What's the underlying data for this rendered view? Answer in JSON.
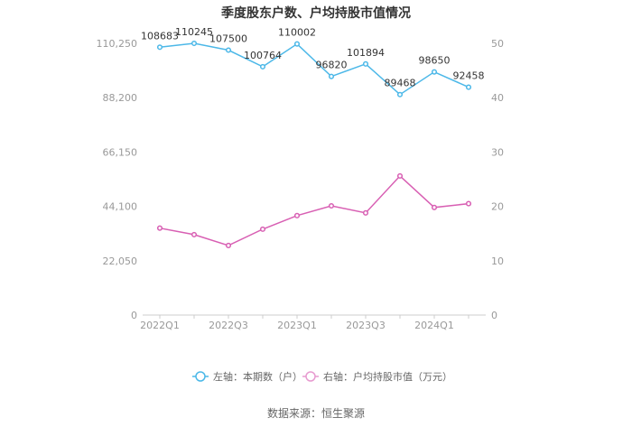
{
  "chart_data": {
    "type": "line",
    "title": "季度股东户数、户均持股市值情况",
    "categories": [
      "2022Q1",
      "2022Q2",
      "2022Q3",
      "2022Q4",
      "2023Q1",
      "2023Q2",
      "2023Q3",
      "2023Q4",
      "2024Q1",
      "2024Q2"
    ],
    "x_tick_labels": [
      "2022Q1",
      "2022Q3",
      "2023Q1",
      "2023Q3",
      "2024Q1"
    ],
    "left_axis": {
      "ticks": [
        "0",
        "22,050",
        "44,100",
        "66,150",
        "88,200",
        "110,250"
      ],
      "ylim": [
        0,
        110250
      ]
    },
    "right_axis": {
      "ticks": [
        "0",
        "10",
        "20",
        "30",
        "40",
        "50"
      ],
      "ylim": [
        0,
        50
      ]
    },
    "series": [
      {
        "name": "左轴：本期数（户）",
        "axis": "left",
        "color": "#4cb8e8",
        "values": [
          108683,
          110245,
          107500,
          100764,
          110002,
          96820,
          101894,
          89468,
          98650,
          92458
        ],
        "data_labels": [
          "108683",
          "110245",
          "107500",
          "100764",
          "110002",
          "96820",
          "101894",
          "89468",
          "98650",
          "92458"
        ]
      },
      {
        "name": "右轴：户均持股市值（万元）",
        "axis": "right",
        "color": "#d85fb3",
        "values": [
          16.0,
          14.8,
          12.8,
          15.8,
          18.3,
          20.1,
          18.8,
          25.6,
          19.8,
          20.5
        ]
      }
    ],
    "grid": false,
    "legend_position": "bottom"
  },
  "footer": {
    "source": "数据来源：恒生聚源"
  }
}
